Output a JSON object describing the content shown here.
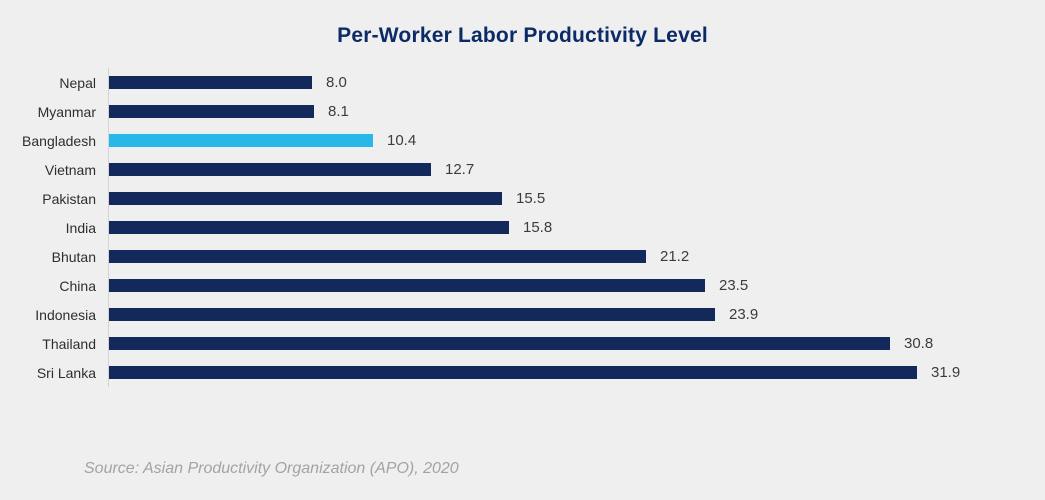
{
  "chart_data": {
    "type": "bar",
    "orientation": "horizontal",
    "title": "Per-Worker Labor Productivity Level",
    "categories": [
      "Nepal",
      "Myanmar",
      "Bangladesh",
      "Vietnam",
      "Pakistan",
      "India",
      "Bhutan",
      "China",
      "Indonesia",
      "Thailand",
      "Sri Lanka"
    ],
    "values": [
      8.0,
      8.1,
      10.4,
      12.7,
      15.5,
      15.8,
      21.2,
      23.5,
      23.9,
      30.8,
      31.9
    ],
    "value_labels": [
      "8.0",
      "8.1",
      "10.4",
      "12.7",
      "15.5",
      "15.8",
      "21.2",
      "23.5",
      "23.9",
      "30.8",
      "31.9"
    ],
    "highlight_category": "Bangladesh",
    "bar_color": "#13295B",
    "highlight_color": "#29B6E8",
    "title_color": "#0C2A66",
    "axis_max": 36.5,
    "xlim": [
      0,
      36.5
    ],
    "grid": "off",
    "legend": "none"
  },
  "footer": {
    "source": "Source: Asian Productivity Organization (APO), 2020"
  }
}
